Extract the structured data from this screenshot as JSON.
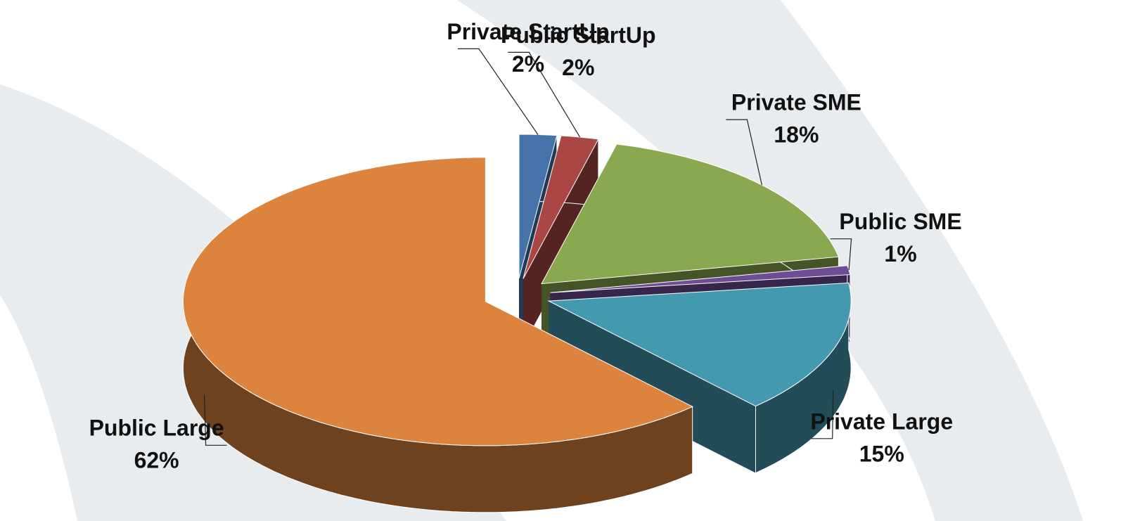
{
  "chart_data": {
    "type": "pie",
    "categories": [
      "Private StartUp",
      "Public StartUp",
      "Private SME",
      "Public SME",
      "Private Large",
      "Public Large"
    ],
    "values": [
      2,
      2,
      18,
      1,
      15,
      62
    ],
    "value_labels": [
      "2%",
      "2%",
      "18%",
      "1%",
      "15%",
      "62%"
    ],
    "colors": [
      "#4674aa",
      "#aa4644",
      "#8aa84f",
      "#6e4c96",
      "#4399b0",
      "#dc843e"
    ]
  }
}
